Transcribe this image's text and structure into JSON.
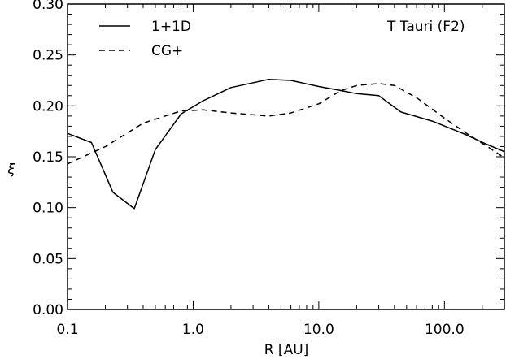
{
  "chart_data": {
    "type": "line",
    "xlabel": "R [AU]",
    "ylabel": "ξ",
    "xscale": "log",
    "xlim": [
      0.1,
      300
    ],
    "ylim": [
      0.0,
      0.3
    ],
    "grid": false,
    "legend_position": "top-left",
    "annotation": "T Tauri (F2)",
    "x_ticks": [
      0.1,
      1.0,
      10.0,
      100.0
    ],
    "x_tick_labels": [
      "0.1",
      "1.0",
      "10.0",
      "100.0"
    ],
    "y_ticks": [
      0.0,
      0.05,
      0.1,
      0.15,
      0.2,
      0.25,
      0.3
    ],
    "y_tick_labels": [
      "0.00",
      "0.05",
      "0.10",
      "0.15",
      "0.20",
      "0.25",
      "0.30"
    ],
    "series": [
      {
        "name": "1+1D",
        "style": "solid",
        "x": [
          0.1,
          0.155,
          0.23,
          0.34,
          0.5,
          0.8,
          1.2,
          2.0,
          4.0,
          6.0,
          10.0,
          15.0,
          20.0,
          30.0,
          45.0,
          80.0,
          140.0,
          220.0,
          300.0
        ],
        "y": [
          0.173,
          0.164,
          0.115,
          0.099,
          0.157,
          0.192,
          0.205,
          0.218,
          0.226,
          0.225,
          0.219,
          0.215,
          0.212,
          0.21,
          0.194,
          0.185,
          0.173,
          0.162,
          0.155
        ]
      },
      {
        "name": "CG+",
        "style": "dashed",
        "x": [
          0.1,
          0.2,
          0.4,
          0.8,
          1.2,
          2.0,
          4.0,
          6.0,
          10.0,
          15.0,
          20.0,
          30.0,
          40.0,
          60.0,
          100.0,
          150.0,
          220.0,
          300.0
        ],
        "y": [
          0.143,
          0.16,
          0.183,
          0.195,
          0.196,
          0.193,
          0.19,
          0.193,
          0.202,
          0.215,
          0.22,
          0.222,
          0.22,
          0.208,
          0.188,
          0.173,
          0.16,
          0.149
        ]
      }
    ]
  }
}
